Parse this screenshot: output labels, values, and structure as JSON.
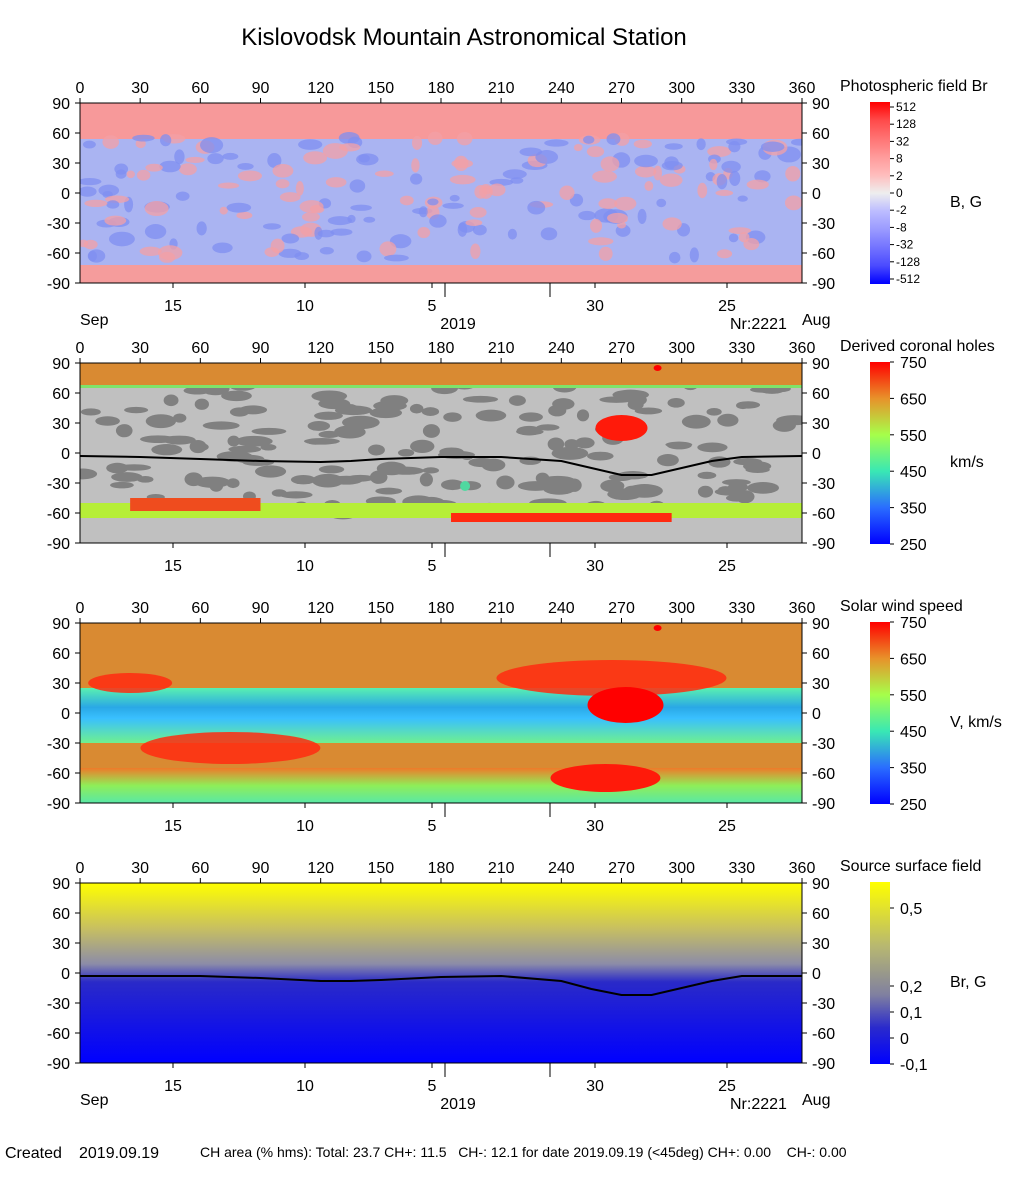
{
  "title": "Kislovodsk Mountain Astronomical Station",
  "footer": {
    "created_label": "Created",
    "created_date": "2019.09.19",
    "ch_area_text": "CH area (% hms): Total: 23.7 CH+: 11.5   CH-: 12.1 for date 2019.09.19 (<45deg) CH+: 0.00    CH-: 0.00"
  },
  "chart_data": [
    {
      "type": "heatmap",
      "title": "Photospheric field Br",
      "colorbar_label": "B, G",
      "colorbar_ticks": [
        "512",
        "128",
        "32",
        "8",
        "2",
        "0",
        "-2",
        "-8",
        "-32",
        "-128",
        "-512"
      ],
      "colorbar_colors": [
        "#ff0000",
        "#ff4a4a",
        "#ff7373",
        "#ff9a9a",
        "#ffbcbc",
        "#eeeeee",
        "#bcbcff",
        "#9a9aff",
        "#7373ff",
        "#4a4aff",
        "#0000ff"
      ],
      "top_axis_ticks": [
        0,
        30,
        60,
        90,
        120,
        150,
        180,
        210,
        240,
        270,
        300,
        330,
        360
      ],
      "y_ticks": [
        90,
        60,
        30,
        0,
        -30,
        -60,
        -90
      ],
      "xlim": [
        0,
        360
      ],
      "ylim": [
        -90,
        90
      ],
      "date_ticks": [
        "15",
        "10",
        "5",
        "30",
        "25"
      ],
      "date_left": "Sep",
      "date_right": "Aug",
      "year": "2019",
      "rotation": "Nr:2221"
    },
    {
      "type": "heatmap",
      "title": "Derived coronal holes",
      "colorbar_label": "km/s",
      "colorbar_ticks": [
        "750",
        "650",
        "550",
        "450",
        "350",
        "250"
      ],
      "colorbar_range": [
        250,
        750
      ],
      "top_axis_ticks": [
        0,
        30,
        60,
        90,
        120,
        150,
        180,
        210,
        240,
        270,
        300,
        330,
        360
      ],
      "y_ticks": [
        90,
        60,
        30,
        0,
        -30,
        -60,
        -90
      ],
      "xlim": [
        0,
        360
      ],
      "ylim": [
        -90,
        90
      ],
      "date_ticks": [
        "15",
        "10",
        "5",
        "30",
        "25"
      ],
      "neutral_line": {
        "lon": [
          0,
          30,
          60,
          90,
          120,
          135,
          150,
          180,
          210,
          240,
          255,
          270,
          285,
          300,
          315,
          330,
          360
        ],
        "lat": [
          -3,
          -4,
          -6,
          -8,
          -9,
          -8,
          -6,
          -4,
          -4,
          -8,
          -15,
          -22,
          -22,
          -15,
          -8,
          -4,
          -3
        ]
      }
    },
    {
      "type": "heatmap",
      "title": "Solar wind speed",
      "colorbar_label": "V, km/s",
      "colorbar_ticks": [
        "750",
        "650",
        "550",
        "450",
        "350",
        "250"
      ],
      "colorbar_range": [
        250,
        750
      ],
      "top_axis_ticks": [
        0,
        30,
        60,
        90,
        120,
        150,
        180,
        210,
        240,
        270,
        300,
        330,
        360
      ],
      "y_ticks": [
        90,
        60,
        30,
        0,
        -30,
        -60,
        -90
      ],
      "xlim": [
        0,
        360
      ],
      "ylim": [
        -90,
        90
      ],
      "date_ticks": [
        "15",
        "10",
        "5",
        "30",
        "25"
      ]
    },
    {
      "type": "heatmap",
      "title": "Source surface field",
      "colorbar_label": "Br, G",
      "colorbar_ticks": [
        "0,5",
        "0,2",
        "0,1",
        "0",
        "-0,1"
      ],
      "colorbar_tick_values": [
        0.5,
        0.2,
        0.1,
        0,
        -0.1
      ],
      "colorbar_range": [
        -0.1,
        0.6
      ],
      "top_axis_ticks": [
        0,
        30,
        60,
        90,
        120,
        150,
        180,
        210,
        240,
        270,
        300,
        330,
        360
      ],
      "y_ticks": [
        90,
        60,
        30,
        0,
        -30,
        -60,
        -90
      ],
      "xlim": [
        0,
        360
      ],
      "ylim": [
        -90,
        90
      ],
      "date_ticks": [
        "15",
        "10",
        "5",
        "30",
        "25"
      ],
      "date_left": "Sep",
      "date_right": "Aug",
      "year": "2019",
      "rotation": "Nr:2221",
      "neutral_line": {
        "lon": [
          0,
          30,
          60,
          90,
          120,
          135,
          150,
          180,
          210,
          240,
          255,
          270,
          285,
          300,
          315,
          330,
          360
        ],
        "lat": [
          -3,
          -3,
          -3,
          -5,
          -8,
          -8,
          -7,
          -4,
          -3,
          -8,
          -16,
          -22,
          -22,
          -15,
          -8,
          -3,
          -3
        ]
      }
    }
  ]
}
